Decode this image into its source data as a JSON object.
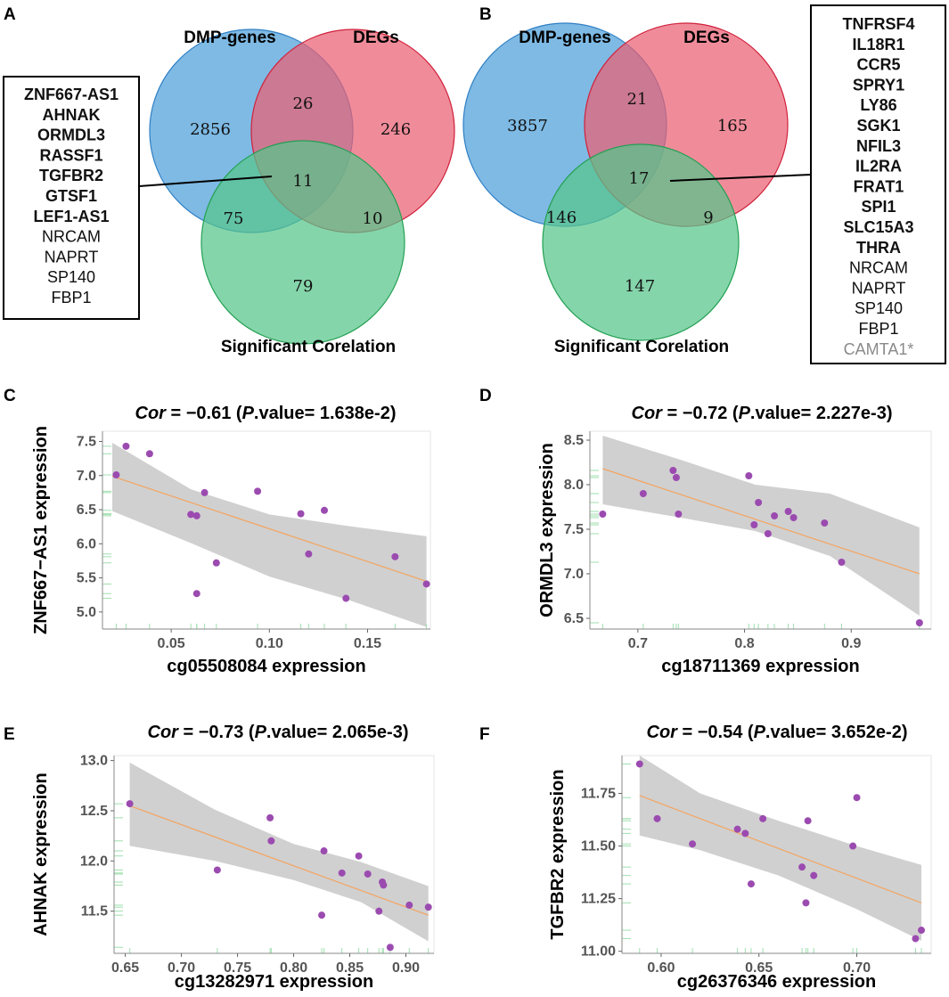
{
  "panels": {
    "A": "A",
    "B": "B",
    "C": "C",
    "D": "D",
    "E": "E",
    "F": "F"
  },
  "venn_A": {
    "labels": {
      "left": "DMP-genes",
      "right": "DEGs",
      "bottom": "Significant Corelation"
    },
    "regions": {
      "left_only": "2856",
      "left_right": "26",
      "right_only": "246",
      "center": "11",
      "left_bottom": "75",
      "right_bottom": "10",
      "bottom_only": "79"
    },
    "colors": {
      "left": "#5aa7dd",
      "right": "#ea5f73",
      "bottom": "#56c58a"
    },
    "genes": [
      {
        "name": "ZNF667-AS1",
        "bold": true
      },
      {
        "name": "AHNAK",
        "bold": true
      },
      {
        "name": "ORMDL3",
        "bold": true
      },
      {
        "name": "RASSF1",
        "bold": true
      },
      {
        "name": "TGFBR2",
        "bold": true
      },
      {
        "name": "GTSF1",
        "bold": true
      },
      {
        "name": "LEF1-AS1",
        "bold": true
      },
      {
        "name": "NRCAM",
        "bold": false
      },
      {
        "name": "NAPRT",
        "bold": false
      },
      {
        "name": "SP140",
        "bold": false
      },
      {
        "name": "FBP1",
        "bold": false
      }
    ]
  },
  "venn_B": {
    "labels": {
      "left": "DMP-genes",
      "right": "DEGs",
      "bottom": "Significant Corelation"
    },
    "regions": {
      "left_only": "3857",
      "left_right": "21",
      "right_only": "165",
      "center": "17",
      "left_bottom": "146",
      "right_bottom": "9",
      "bottom_only": "147"
    },
    "genes": [
      {
        "name": "TNFRSF4",
        "bold": true
      },
      {
        "name": "IL18R1",
        "bold": true
      },
      {
        "name": "CCR5",
        "bold": true
      },
      {
        "name": "SPRY1",
        "bold": true
      },
      {
        "name": "LY86",
        "bold": true
      },
      {
        "name": "SGK1",
        "bold": true
      },
      {
        "name": "NFIL3",
        "bold": true
      },
      {
        "name": "IL2RA",
        "bold": true
      },
      {
        "name": "FRAT1",
        "bold": true
      },
      {
        "name": "SPI1",
        "bold": true
      },
      {
        "name": "SLC15A3",
        "bold": true
      },
      {
        "name": "THRA",
        "bold": true
      },
      {
        "name": "NRCAM",
        "bold": false
      },
      {
        "name": "NAPRT",
        "bold": false
      },
      {
        "name": "SP140",
        "bold": false
      },
      {
        "name": "FBP1",
        "bold": false
      },
      {
        "name": "CAMTA1*",
        "bold": false,
        "gray": true
      }
    ]
  },
  "chart_data": [
    {
      "panel": "C",
      "type": "scatter",
      "title": {
        "cor_label": "Cor",
        "cor_value": " = −0.61 (",
        "p_label": "P",
        "p_value": ".value= 1.638e-2)"
      },
      "xlabel": "cg05508084 expression",
      "ylabel": "ZNF667−AS1 expression",
      "xlim": [
        0.015,
        0.182
      ],
      "ylim": [
        4.75,
        7.65
      ],
      "xticks": [
        0.05,
        0.1,
        0.15
      ],
      "xtick_labels": [
        "0.05",
        "0.10",
        "0.15"
      ],
      "yticks": [
        5.0,
        5.5,
        6.0,
        6.5,
        7.0,
        7.5
      ],
      "ytick_labels": [
        "5.0",
        "5.5",
        "6.0",
        "6.5",
        "7.0",
        "7.5"
      ],
      "points": [
        [
          0.022,
          7.01
        ],
        [
          0.027,
          7.43
        ],
        [
          0.039,
          7.32
        ],
        [
          0.06,
          6.43
        ],
        [
          0.063,
          6.41
        ],
        [
          0.063,
          5.27
        ],
        [
          0.067,
          6.75
        ],
        [
          0.073,
          5.72
        ],
        [
          0.094,
          6.77
        ],
        [
          0.116,
          6.44
        ],
        [
          0.12,
          5.85
        ],
        [
          0.128,
          6.49
        ],
        [
          0.139,
          5.2
        ],
        [
          0.164,
          5.81
        ],
        [
          0.18,
          5.41
        ]
      ],
      "fit": {
        "x": [
          0.02,
          0.18
        ],
        "y": [
          6.99,
          5.45
        ]
      },
      "band": {
        "x": [
          0.02,
          0.06,
          0.1,
          0.14,
          0.18
        ],
        "lower": [
          6.48,
          6.01,
          5.52,
          5.18,
          4.78
        ],
        "upper": [
          7.48,
          6.8,
          6.43,
          6.26,
          6.11
        ]
      }
    },
    {
      "panel": "D",
      "type": "scatter",
      "title": {
        "cor_label": "Cor",
        "cor_value": " = −0.72 (",
        "p_label": "P",
        "p_value": ".value= 2.227e-3)"
      },
      "xlabel": "cg18711369 expression",
      "ylabel": "ORMDL3 expression",
      "xlim": [
        0.655,
        0.975
      ],
      "ylim": [
        6.38,
        8.6
      ],
      "xticks": [
        0.7,
        0.8,
        0.9
      ],
      "xtick_labels": [
        "0.7",
        "0.8",
        "0.9"
      ],
      "yticks": [
        6.5,
        7.0,
        7.5,
        8.0,
        8.5
      ],
      "ytick_labels": [
        "6.5",
        "7.0",
        "7.5",
        "8.0",
        "8.5"
      ],
      "points": [
        [
          0.667,
          7.67
        ],
        [
          0.705,
          7.9
        ],
        [
          0.733,
          8.16
        ],
        [
          0.736,
          8.08
        ],
        [
          0.738,
          7.67
        ],
        [
          0.804,
          8.1
        ],
        [
          0.809,
          7.55
        ],
        [
          0.813,
          7.8
        ],
        [
          0.822,
          7.45
        ],
        [
          0.828,
          7.65
        ],
        [
          0.841,
          7.7
        ],
        [
          0.846,
          7.63
        ],
        [
          0.875,
          7.57
        ],
        [
          0.891,
          7.13
        ],
        [
          0.964,
          6.45
        ]
      ],
      "fit": {
        "x": [
          0.667,
          0.964
        ],
        "y": [
          8.18,
          7.0
        ]
      },
      "band": {
        "x": [
          0.667,
          0.74,
          0.81,
          0.88,
          0.964
        ],
        "lower": [
          7.78,
          7.63,
          7.48,
          7.2,
          6.53
        ],
        "upper": [
          8.55,
          8.28,
          8.0,
          7.9,
          7.52
        ]
      }
    },
    {
      "panel": "E",
      "type": "scatter",
      "title": {
        "cor_label": "Cor",
        "cor_value": " = −0.73 (",
        "p_label": "P",
        "p_value": ".value= 2.065e-3)"
      },
      "xlabel": "cg13282971 expression",
      "ylabel": "AHNAK expression",
      "xlim": [
        0.64,
        0.925
      ],
      "ylim": [
        11.08,
        13.05
      ],
      "xticks": [
        0.65,
        0.7,
        0.75,
        0.8,
        0.85,
        0.9
      ],
      "xtick_labels": [
        "0.65",
        "0.70",
        "0.75",
        "0.80",
        "0.85",
        "0.90"
      ],
      "yticks": [
        11.5,
        12.0,
        12.5,
        13.0
      ],
      "ytick_labels": [
        "11.5",
        "12.0",
        "12.5",
        "13.0"
      ],
      "points": [
        [
          0.654,
          12.57
        ],
        [
          0.732,
          11.91
        ],
        [
          0.779,
          12.43
        ],
        [
          0.78,
          12.2
        ],
        [
          0.825,
          11.46
        ],
        [
          0.827,
          12.1
        ],
        [
          0.843,
          11.88
        ],
        [
          0.858,
          12.05
        ],
        [
          0.866,
          11.87
        ],
        [
          0.876,
          11.5
        ],
        [
          0.879,
          11.79
        ],
        [
          0.88,
          11.76
        ],
        [
          0.886,
          11.14
        ],
        [
          0.903,
          11.56
        ],
        [
          0.92,
          11.54
        ]
      ],
      "fit": {
        "x": [
          0.654,
          0.92
        ],
        "y": [
          12.55,
          11.46
        ]
      },
      "band": {
        "x": [
          0.654,
          0.73,
          0.8,
          0.86,
          0.92
        ],
        "lower": [
          12.15,
          12.0,
          11.81,
          11.59,
          11.2
        ],
        "upper": [
          12.98,
          12.51,
          12.17,
          11.99,
          11.75
        ]
      }
    },
    {
      "panel": "F",
      "type": "scatter",
      "title": {
        "cor_label": "Cor",
        "cor_value": " = −0.54 (",
        "p_label": "P",
        "p_value": ".value= 3.652e-2)"
      },
      "xlabel": "cg26376346 expression",
      "ylabel": "TGFBR2 expression",
      "xlim": [
        0.58,
        0.738
      ],
      "ylim": [
        10.99,
        11.93
      ],
      "xticks": [
        0.6,
        0.65,
        0.7
      ],
      "xtick_labels": [
        "0.60",
        "0.65",
        "0.70"
      ],
      "yticks": [
        11.0,
        11.25,
        11.5,
        11.75
      ],
      "ytick_labels": [
        "11.00",
        "11.25",
        "11.50",
        "11.75"
      ],
      "points": [
        [
          0.589,
          11.89
        ],
        [
          0.598,
          11.63
        ],
        [
          0.616,
          11.51
        ],
        [
          0.639,
          11.58
        ],
        [
          0.643,
          11.56
        ],
        [
          0.646,
          11.32
        ],
        [
          0.652,
          11.63
        ],
        [
          0.672,
          11.4
        ],
        [
          0.674,
          11.23
        ],
        [
          0.675,
          11.62
        ],
        [
          0.678,
          11.36
        ],
        [
          0.698,
          11.5
        ],
        [
          0.7,
          11.73
        ],
        [
          0.73,
          11.06
        ],
        [
          0.733,
          11.1
        ]
      ],
      "fit": {
        "x": [
          0.589,
          0.733
        ],
        "y": [
          11.74,
          11.23
        ]
      },
      "band": {
        "x": [
          0.589,
          0.62,
          0.66,
          0.7,
          0.733
        ],
        "lower": [
          11.55,
          11.48,
          11.36,
          11.2,
          11.05
        ],
        "upper": [
          11.93,
          11.75,
          11.62,
          11.5,
          11.41
        ]
      }
    }
  ]
}
